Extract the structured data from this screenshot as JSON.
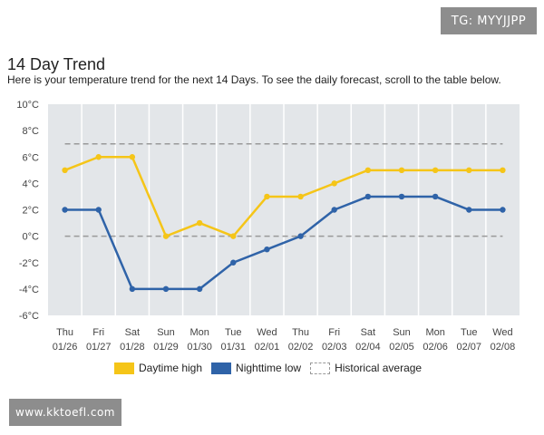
{
  "watermarks": {
    "top": "TG: MYYJJPP",
    "bottom": "www.kktoefl.com"
  },
  "header": {
    "title": "14 Day Trend",
    "subtitle": "Here is your temperature trend for the next 14 Days. To see the daily forecast, scroll to the table below."
  },
  "colors": {
    "high": "#f5c518",
    "low": "#2f63a8",
    "average": "#999999",
    "plot_bg": "#e3e6e9"
  },
  "chart_data": {
    "type": "line",
    "categories": [
      {
        "day": "Thu",
        "date": "01/26"
      },
      {
        "day": "Fri",
        "date": "01/27"
      },
      {
        "day": "Sat",
        "date": "01/28"
      },
      {
        "day": "Sun",
        "date": "01/29"
      },
      {
        "day": "Mon",
        "date": "01/30"
      },
      {
        "day": "Tue",
        "date": "01/31"
      },
      {
        "day": "Wed",
        "date": "02/01"
      },
      {
        "day": "Thu",
        "date": "02/02"
      },
      {
        "day": "Fri",
        "date": "02/03"
      },
      {
        "day": "Sat",
        "date": "02/04"
      },
      {
        "day": "Sun",
        "date": "02/05"
      },
      {
        "day": "Mon",
        "date": "02/06"
      },
      {
        "day": "Tue",
        "date": "02/07"
      },
      {
        "day": "Wed",
        "date": "02/08"
      }
    ],
    "ylim": [
      -6,
      10
    ],
    "yticks": [
      10,
      8,
      6,
      4,
      2,
      0,
      -2,
      -4,
      -6
    ],
    "yunit": "°C",
    "series": [
      {
        "name": "Daytime high",
        "values": [
          5,
          6,
          6,
          0,
          1,
          0,
          3,
          3,
          4,
          5,
          5,
          5,
          5,
          5
        ]
      },
      {
        "name": "Nighttime low",
        "values": [
          2,
          2,
          -4,
          -4,
          -4,
          -2,
          -1,
          0,
          2,
          3,
          3,
          3,
          2,
          2
        ]
      }
    ],
    "historical_average": {
      "name": "Historical average",
      "high": 7,
      "low": 0
    },
    "grid": true,
    "legend_position": "bottom"
  }
}
